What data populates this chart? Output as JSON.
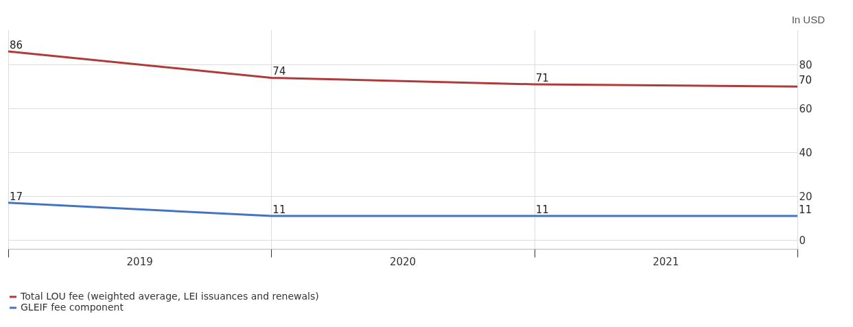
{
  "chart_data": {
    "type": "line",
    "categories": [
      null,
      null,
      null,
      null
    ],
    "ylim": [
      -4,
      96
    ],
    "yticks": [
      0,
      20,
      40,
      60,
      80
    ],
    "series": [
      {
        "name": "Total LOU fee (weighted average, LEI issuances and renewals)",
        "color": "#b03a3a",
        "values": [
          86,
          74,
          71,
          70
        ]
      },
      {
        "name": "GLEIF fee component",
        "color": "#4472c4",
        "values": [
          17,
          11,
          11,
          11
        ]
      }
    ],
    "data_labels": true,
    "grid": true,
    "legend": "bottom",
    "marker": "none",
    "line_style": "solid",
    "annotations": [
      "2019",
      "2020",
      "2021",
      "In USD"
    ]
  }
}
